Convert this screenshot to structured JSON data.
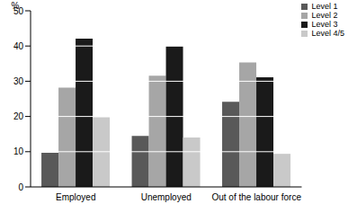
{
  "chart_data": {
    "type": "bar",
    "y_label": "%",
    "categories": [
      "Employed",
      "Unemployed",
      "Out of the labour force"
    ],
    "series": [
      {
        "name": "Level 1",
        "color": "#595959",
        "values": [
          9.7,
          14.5,
          24.2
        ]
      },
      {
        "name": "Level 2",
        "color": "#a6a6a6",
        "values": [
          28.2,
          31.6,
          35.3
        ]
      },
      {
        "name": "Level 3",
        "color": "#1a1a1a",
        "values": [
          42.1,
          39.9,
          31.1
        ]
      },
      {
        "name": "Level 4/5",
        "color": "#c9c9c9",
        "values": [
          19.8,
          14.0,
          9.4
        ]
      }
    ],
    "ylim": [
      0,
      50
    ],
    "yticks": [
      0,
      10,
      20,
      30,
      40,
      50
    ],
    "grid": true,
    "legend": "upper right"
  }
}
